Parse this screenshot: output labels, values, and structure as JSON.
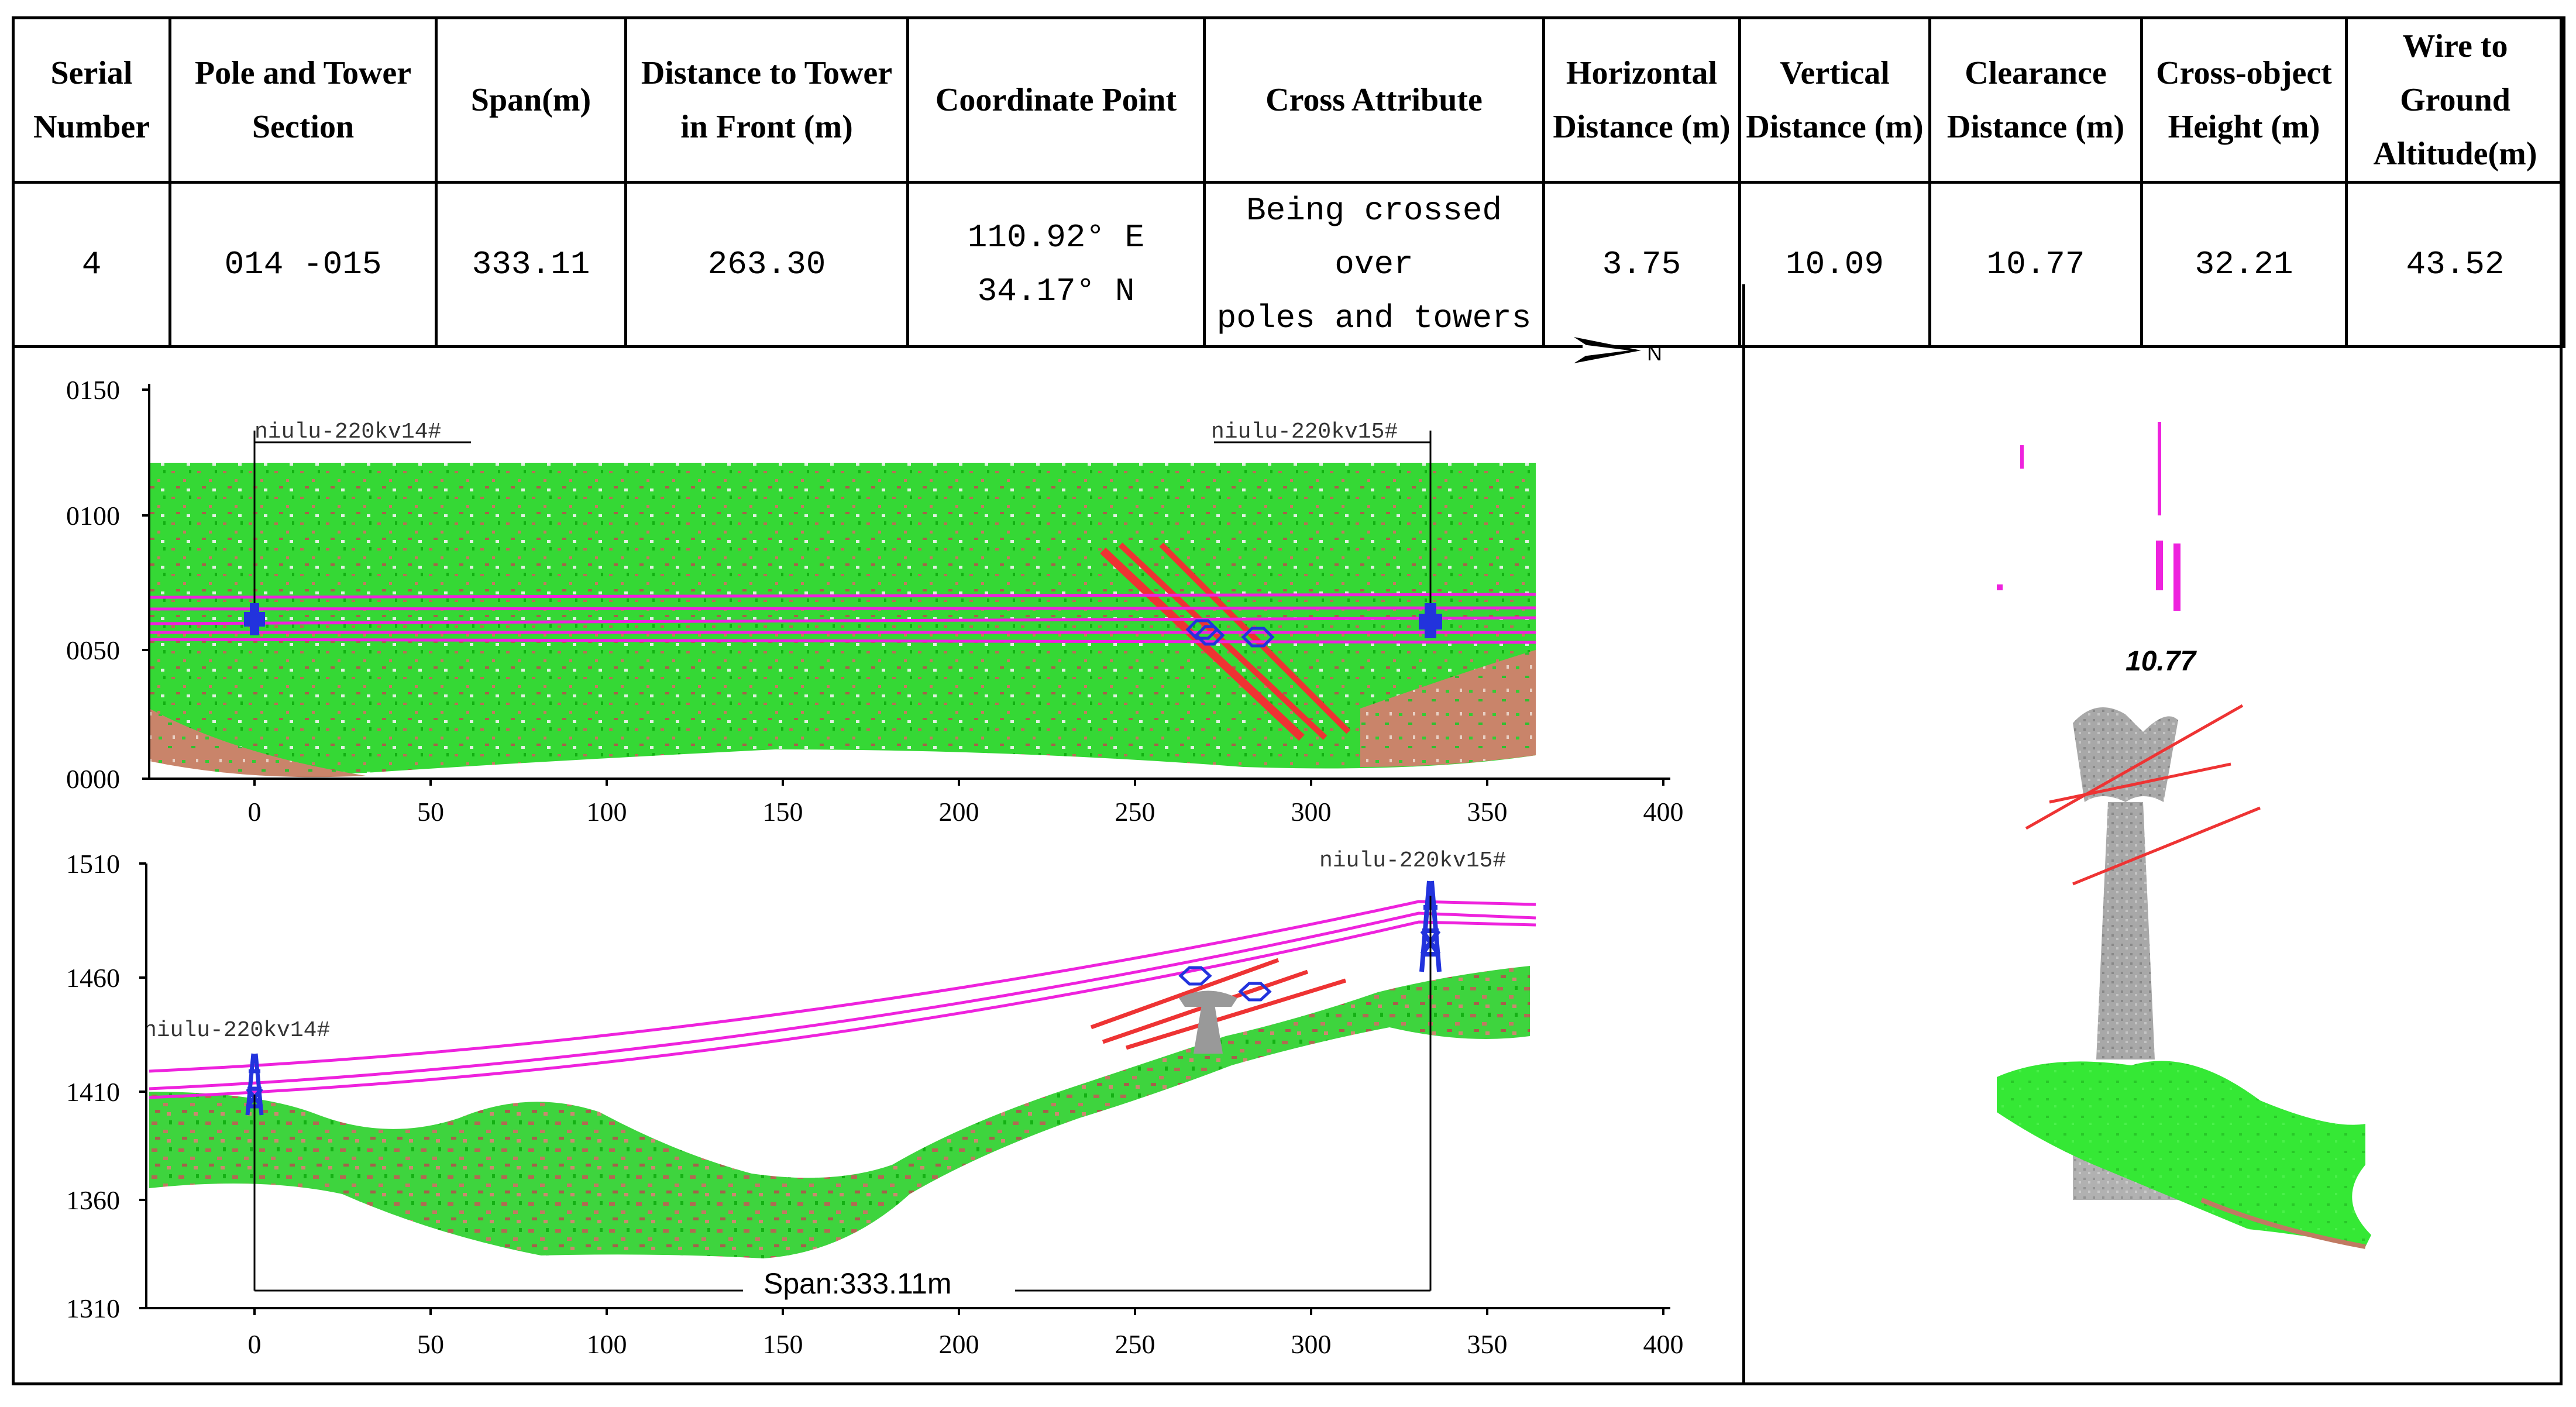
{
  "table": {
    "headers": [
      "Serial Number",
      "Pole and Tower Section",
      "Span(m)",
      "Distance to Tower in Front (m)",
      "Coordinate Point",
      "Cross Attribute",
      "Horizontal Distance (m)",
      "Vertical Distance (m)",
      "Clearance Distance (m)",
      "Cross-object Height (m)",
      "Wire to Ground Altitude(m)"
    ],
    "row": {
      "serial": "4",
      "section": "014 -015",
      "span": "333.11",
      "distance_front": "263.30",
      "coord_lon": "110.92° E",
      "coord_lat": "34.17° N",
      "cross_attr_1": "Being crossed over",
      "cross_attr_2": "poles and towers",
      "horizontal": "3.75",
      "vertical": "10.09",
      "clearance": "10.77",
      "cross_height": "32.21",
      "wire_altitude": "43.52"
    }
  },
  "plan_view": {
    "y_ticks": [
      "0150",
      "0100",
      "0050",
      "0000"
    ],
    "x_ticks": [
      "0",
      "50",
      "100",
      "150",
      "200",
      "250",
      "300",
      "350",
      "400"
    ],
    "tower_left_label": "niulu-220kv14#",
    "tower_right_label": "niulu-220kv15#",
    "north_label": "N"
  },
  "profile_view": {
    "y_ticks": [
      "1510",
      "1460",
      "1410",
      "1360",
      "1310"
    ],
    "x_ticks": [
      "0",
      "50",
      "100",
      "150",
      "200",
      "250",
      "300",
      "350",
      "400"
    ],
    "tower_left_label": "niulu-220kv14#",
    "tower_right_label": "niulu-220kv15#",
    "span_label": "Span:333.11m"
  },
  "cross_section": {
    "clearance_label": "10.77"
  },
  "colors": {
    "vegetation": "#22dd22",
    "ground": "#c0705a",
    "wire": "#ee22dd",
    "crossing_line": "#ee3333",
    "tower": "#2233dd",
    "crossed_pole": "#999999"
  }
}
